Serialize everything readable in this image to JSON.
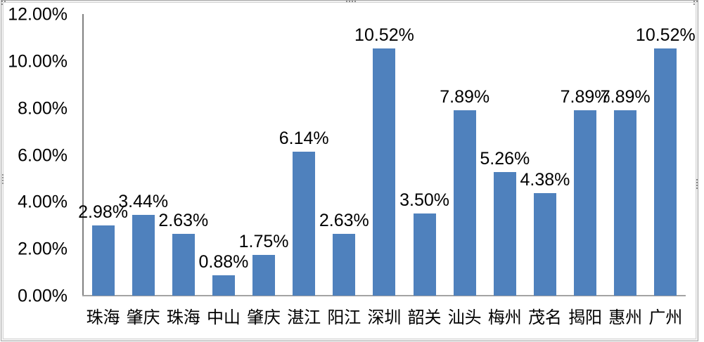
{
  "chart_data": {
    "type": "bar",
    "title": "",
    "xlabel": "",
    "ylabel": "",
    "categories": [
      "珠海",
      "肇庆",
      "珠海",
      "中山",
      "肇庆",
      "湛江",
      "阳江",
      "深圳",
      "韶关",
      "汕头",
      "梅州",
      "茂名",
      "揭阳",
      "惠州",
      "广州"
    ],
    "values": [
      2.98,
      3.44,
      2.63,
      0.88,
      1.75,
      6.14,
      2.63,
      10.52,
      3.5,
      7.89,
      5.26,
      4.38,
      7.89,
      7.89,
      10.52
    ],
    "data_labels": [
      "2.98%",
      "3.44%",
      "2.63%",
      "0.88%",
      "1.75%",
      "6.14%",
      "2.63%",
      "10.52%",
      "3.50%",
      "7.89%",
      "5.26%",
      "4.38%",
      "7.89%",
      "7.89%",
      "10.52%"
    ],
    "y_ticks": [
      "12.00%",
      "10.00%",
      "8.00%",
      "6.00%",
      "4.00%",
      "2.00%",
      "0.00%"
    ],
    "ylim": [
      0,
      12
    ],
    "grid": false,
    "legend": "none",
    "bar_color": "#4F81BD",
    "y_axis_color": "#808080",
    "x_axis_color": "#a3a3a3",
    "label_color": "#000000"
  }
}
